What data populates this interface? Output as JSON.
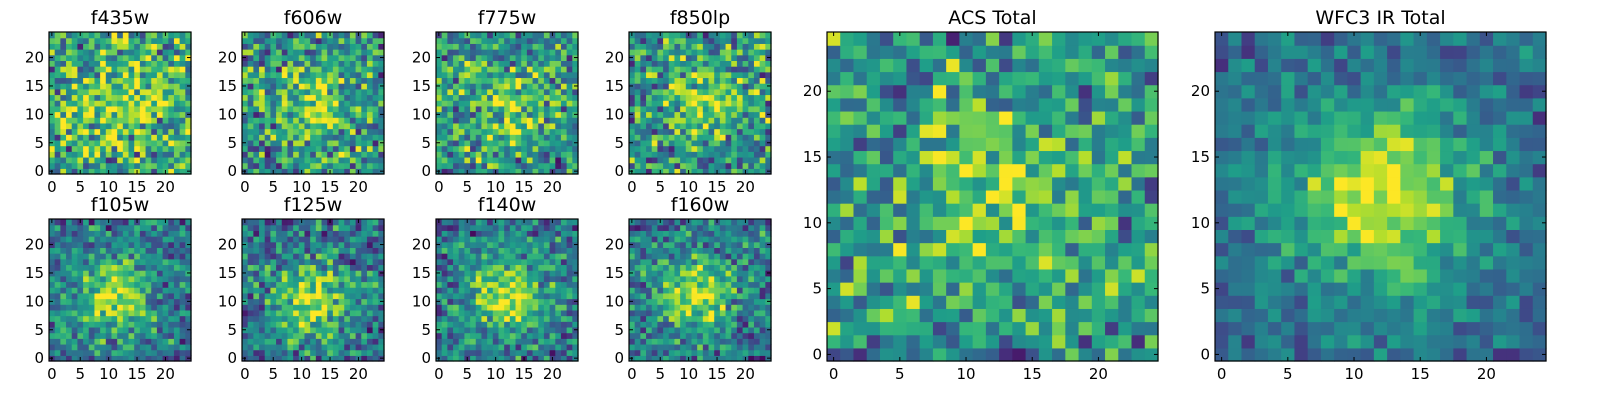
{
  "chart_data": [
    {
      "type": "heatmap",
      "title": "f435w",
      "xticks": [
        0,
        5,
        10,
        15,
        20
      ],
      "yticks": [
        0,
        5,
        10,
        15,
        20
      ],
      "xlim": [
        0,
        24
      ],
      "ylim": [
        0,
        24
      ],
      "grid_size": 25,
      "colormap": "viridis",
      "source_profile": {
        "center": [
          12,
          12
        ],
        "peak": 0.18,
        "sigma": 6,
        "noise": 0.55,
        "base": 0.6,
        "seed": 11
      }
    },
    {
      "type": "heatmap",
      "title": "f606w",
      "xticks": [
        0,
        5,
        10,
        15,
        20
      ],
      "yticks": [
        0,
        5,
        10,
        15,
        20
      ],
      "xlim": [
        0,
        24
      ],
      "ylim": [
        0,
        24
      ],
      "grid_size": 25,
      "colormap": "viridis",
      "source_profile": {
        "center": [
          12,
          11
        ],
        "peak": 0.3,
        "sigma": 5,
        "noise": 0.5,
        "base": 0.5,
        "seed": 23
      }
    },
    {
      "type": "heatmap",
      "title": "f775w",
      "xticks": [
        0,
        5,
        10,
        15,
        20
      ],
      "yticks": [
        0,
        5,
        10,
        15,
        20
      ],
      "xlim": [
        0,
        24
      ],
      "ylim": [
        0,
        24
      ],
      "grid_size": 25,
      "colormap": "viridis",
      "source_profile": {
        "center": [
          12,
          12
        ],
        "peak": 0.3,
        "sigma": 5,
        "noise": 0.5,
        "base": 0.5,
        "seed": 37
      }
    },
    {
      "type": "heatmap",
      "title": "f850lp",
      "xticks": [
        0,
        5,
        10,
        15,
        20
      ],
      "yticks": [
        0,
        5,
        10,
        15,
        20
      ],
      "xlim": [
        0,
        24
      ],
      "ylim": [
        0,
        24
      ],
      "grid_size": 25,
      "colormap": "viridis",
      "source_profile": {
        "center": [
          13,
          13
        ],
        "peak": 0.3,
        "sigma": 5,
        "noise": 0.5,
        "base": 0.5,
        "seed": 41
      }
    },
    {
      "type": "heatmap",
      "title": "f105w",
      "xticks": [
        0,
        5,
        10,
        15,
        20
      ],
      "yticks": [
        0,
        5,
        10,
        15,
        20
      ],
      "xlim": [
        0,
        24
      ],
      "ylim": [
        0,
        24
      ],
      "grid_size": 25,
      "colormap": "viridis",
      "source_profile": {
        "center": [
          11,
          11
        ],
        "peak": 0.5,
        "sigma": 4.5,
        "noise": 0.4,
        "base": 0.4,
        "seed": 53
      }
    },
    {
      "type": "heatmap",
      "title": "f125w",
      "xticks": [
        0,
        5,
        10,
        15,
        20
      ],
      "yticks": [
        0,
        5,
        10,
        15,
        20
      ],
      "xlim": [
        0,
        24
      ],
      "ylim": [
        0,
        24
      ],
      "grid_size": 25,
      "colormap": "viridis",
      "source_profile": {
        "center": [
          12,
          10
        ],
        "peak": 0.5,
        "sigma": 4.5,
        "noise": 0.4,
        "base": 0.4,
        "seed": 67
      }
    },
    {
      "type": "heatmap",
      "title": "f140w",
      "xticks": [
        0,
        5,
        10,
        15,
        20
      ],
      "yticks": [
        0,
        5,
        10,
        15,
        20
      ],
      "xlim": [
        0,
        24
      ],
      "ylim": [
        0,
        24
      ],
      "grid_size": 25,
      "colormap": "viridis",
      "source_profile": {
        "center": [
          12,
          11
        ],
        "peak": 0.5,
        "sigma": 4.5,
        "noise": 0.4,
        "base": 0.4,
        "seed": 71
      }
    },
    {
      "type": "heatmap",
      "title": "f160w",
      "xticks": [
        0,
        5,
        10,
        15,
        20
      ],
      "yticks": [
        0,
        5,
        10,
        15,
        20
      ],
      "xlim": [
        0,
        24
      ],
      "ylim": [
        0,
        24
      ],
      "grid_size": 25,
      "colormap": "viridis",
      "source_profile": {
        "center": [
          11,
          11
        ],
        "peak": 0.5,
        "sigma": 4.5,
        "noise": 0.4,
        "base": 0.4,
        "seed": 83
      }
    },
    {
      "type": "heatmap",
      "title": "ACS Total",
      "xticks": [
        0,
        5,
        10,
        15,
        20
      ],
      "yticks": [
        0,
        5,
        10,
        15,
        20
      ],
      "xlim": [
        0,
        24
      ],
      "ylim": [
        0,
        24
      ],
      "grid_size": 25,
      "colormap": "viridis",
      "source_profile": {
        "center": [
          12,
          12
        ],
        "peak": 0.3,
        "sigma": 5,
        "noise": 0.45,
        "base": 0.5,
        "seed": 97
      }
    },
    {
      "type": "heatmap",
      "title": "WFC3 IR Total",
      "xticks": [
        0,
        5,
        10,
        15,
        20
      ],
      "yticks": [
        0,
        5,
        10,
        15,
        20
      ],
      "xlim": [
        0,
        24
      ],
      "ylim": [
        0,
        24
      ],
      "grid_size": 25,
      "colormap": "viridis",
      "source_profile": {
        "center": [
          12,
          12
        ],
        "peak": 0.6,
        "sigma": 5,
        "noise": 0.25,
        "base": 0.35,
        "seed": 101
      }
    }
  ]
}
